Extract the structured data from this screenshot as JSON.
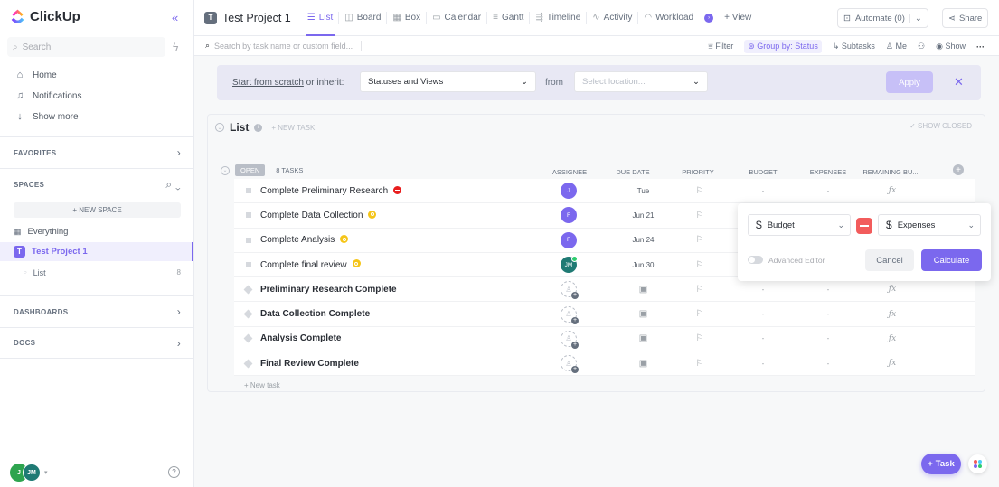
{
  "brand": {
    "name": "ClickUp",
    "accent": "#7b68ee"
  },
  "sidebar": {
    "search_placeholder": "Search",
    "nav": [
      {
        "label": "Home",
        "icon": "home-icon"
      },
      {
        "label": "Notifications",
        "icon": "bell-icon"
      },
      {
        "label": "Show more",
        "icon": "arrow-down-icon"
      }
    ],
    "favorites": "FAVORITES",
    "spaces": "SPACES",
    "new_space": "+ NEW SPACE",
    "everything": "Everything",
    "project": {
      "initial": "T",
      "name": "Test Project 1"
    },
    "list": {
      "name": "List",
      "count": "8"
    },
    "dashboards": "DASHBOARDS",
    "docs": "DOCS",
    "user_initials": [
      "J",
      "JM"
    ]
  },
  "header": {
    "project_initial": "T",
    "project_title": "Test Project 1",
    "views": [
      {
        "label": "List",
        "icon": "list-icon",
        "active": true
      },
      {
        "label": "Board",
        "icon": "board-icon"
      },
      {
        "label": "Box",
        "icon": "box-icon"
      },
      {
        "label": "Calendar",
        "icon": "calendar-icon"
      },
      {
        "label": "Gantt",
        "icon": "gantt-icon"
      },
      {
        "label": "Timeline",
        "icon": "timeline-icon"
      },
      {
        "label": "Activity",
        "icon": "activity-icon"
      },
      {
        "label": "Workload",
        "icon": "workload-icon"
      }
    ],
    "add_view": "+ View",
    "automate": "Automate (0)",
    "share": "Share"
  },
  "toolbar": {
    "search_placeholder": "Search by task name or custom field...",
    "filter": "Filter",
    "group_by": "Group by: Status",
    "subtasks": "Subtasks",
    "me": "Me",
    "show": "Show"
  },
  "inherit": {
    "link": "Start from scratch",
    "suffix": " or inherit:",
    "select_value": "Statuses and Views",
    "from": "from",
    "location_placeholder": "Select location...",
    "apply": "Apply"
  },
  "list": {
    "title": "List",
    "new_task_top": "+ NEW TASK",
    "show_closed": "✓ SHOW CLOSED",
    "status": "OPEN",
    "task_count": "8 TASKS",
    "columns": [
      "ASSIGNEE",
      "DUE DATE",
      "PRIORITY",
      "BUDGET",
      "EXPENSES",
      "REMAINING BU..."
    ],
    "tasks": [
      {
        "name": "Complete Preliminary Research",
        "type": "task",
        "badge": "red",
        "assignee": "J",
        "due": "Tue",
        "budget": "-",
        "expenses": "-"
      },
      {
        "name": "Complete Data Collection",
        "type": "task",
        "badge": "yellow",
        "assignee": "F",
        "due": "Jun 21",
        "budget": "-",
        "expenses": "-"
      },
      {
        "name": "Complete Analysis",
        "type": "task",
        "badge": "yellow",
        "assignee": "F",
        "due": "Jun 24",
        "budget": "-",
        "expenses": "-"
      },
      {
        "name": "Complete final review",
        "type": "task",
        "badge": "yellow",
        "assignee": "JM",
        "due": "Jun 30",
        "budget": "-",
        "expenses": "-"
      },
      {
        "name": "Preliminary Research Complete",
        "type": "milestone",
        "badge": "",
        "assignee": "",
        "due": "",
        "budget": "-",
        "expenses": "-"
      },
      {
        "name": "Data Collection Complete",
        "type": "milestone",
        "badge": "",
        "assignee": "",
        "due": "",
        "budget": "-",
        "expenses": "-"
      },
      {
        "name": "Analysis Complete",
        "type": "milestone",
        "badge": "",
        "assignee": "",
        "due": "",
        "budget": "-",
        "expenses": "-"
      },
      {
        "name": "Final Review Complete",
        "type": "milestone",
        "badge": "",
        "assignee": "",
        "due": "",
        "budget": "-",
        "expenses": "-"
      }
    ],
    "new_task_bottom": "+ New task"
  },
  "formula_popup": {
    "field_a": "Budget",
    "field_b": "Expenses",
    "advanced_editor": "Advanced Editor",
    "cancel": "Cancel",
    "calculate": "Calculate"
  },
  "fab": {
    "label": "Task"
  }
}
